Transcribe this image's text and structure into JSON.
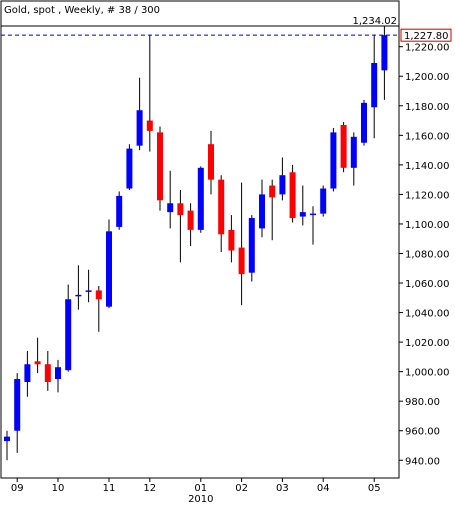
{
  "chart_data": {
    "type": "candlestick",
    "title": "Gold, spot , Weekly, # 38 / 300",
    "categories": [
      null,
      "09",
      null,
      null,
      null,
      "10",
      null,
      null,
      null,
      null,
      "11",
      null,
      null,
      null,
      "12",
      null,
      null,
      null,
      null,
      "01",
      null,
      null,
      null,
      "02",
      null,
      null,
      null,
      "03",
      null,
      null,
      null,
      "04",
      null,
      null,
      null,
      null,
      "05",
      null
    ],
    "year_label": "2010",
    "open": [
      953,
      960,
      993,
      1007,
      1005,
      995,
      1001,
      1051,
      1054,
      1055,
      1044,
      1098,
      1124,
      1153,
      1170,
      1162,
      1108,
      1114,
      1109,
      1096,
      1154,
      1130,
      1096,
      1084,
      1067,
      1097,
      1126,
      1120,
      1135,
      1105,
      1106,
      1107,
      1124,
      1167,
      1138,
      1155,
      1179,
      1204
    ],
    "high": [
      960,
      999,
      1014,
      1023,
      1014,
      1008,
      1059,
      1072,
      1069,
      1058,
      1103,
      1122,
      1154,
      1199,
      1228,
      1166,
      1136,
      1123,
      1114,
      1139,
      1163,
      1133,
      1106,
      1128,
      1106,
      1130,
      1130,
      1145,
      1140,
      1126,
      1112,
      1126,
      1165,
      1169,
      1162,
      1184,
      1228,
      1234.02
    ],
    "low": [
      940,
      945,
      983,
      999,
      987,
      986,
      1000,
      1042,
      1047,
      1027,
      1043,
      1096,
      1123,
      1150,
      1149,
      1109,
      1097,
      1074,
      1085,
      1094,
      1120,
      1081,
      1074,
      1045,
      1061,
      1091,
      1089,
      1116,
      1101,
      1099,
      1086,
      1105,
      1122,
      1135,
      1126,
      1153,
      1158,
      1184
    ],
    "close": [
      956,
      995,
      1005,
      1005,
      993,
      1003,
      1049,
      1052,
      1055,
      1049,
      1095,
      1119,
      1151,
      1177,
      1163,
      1116,
      1114,
      1106,
      1096,
      1138,
      1130,
      1093,
      1082,
      1066,
      1104,
      1120,
      1118,
      1133,
      1104,
      1108,
      1107,
      1124,
      1162,
      1138,
      1159,
      1182,
      1209,
      1227.8
    ],
    "up_color": "#0000ff",
    "down_color": "#ff0000",
    "ylim": [
      928,
      1234.02
    ],
    "yticks": [
      {
        "value": 940,
        "label": "940.00"
      },
      {
        "value": 960,
        "label": "960.00"
      },
      {
        "value": 980,
        "label": "980.00"
      },
      {
        "value": 1000,
        "label": "1,000.00"
      },
      {
        "value": 1020,
        "label": "1,020.00"
      },
      {
        "value": 1040,
        "label": "1,040.00"
      },
      {
        "value": 1060,
        "label": "1,060.00"
      },
      {
        "value": 1080,
        "label": "1,080.00"
      },
      {
        "value": 1100,
        "label": "1,100.00"
      },
      {
        "value": 1120,
        "label": "1,120.00"
      },
      {
        "value": 1140,
        "label": "1,140.00"
      },
      {
        "value": 1160,
        "label": "1,160.00"
      },
      {
        "value": 1180,
        "label": "1,180.00"
      },
      {
        "value": 1200,
        "label": "1,200.00"
      },
      {
        "value": 1220,
        "label": "1,220.00"
      }
    ],
    "max_label": {
      "value": 1234.02,
      "label": "1,234.02"
    },
    "last_label": {
      "value": 1227.8,
      "label": "1,227.80"
    }
  }
}
